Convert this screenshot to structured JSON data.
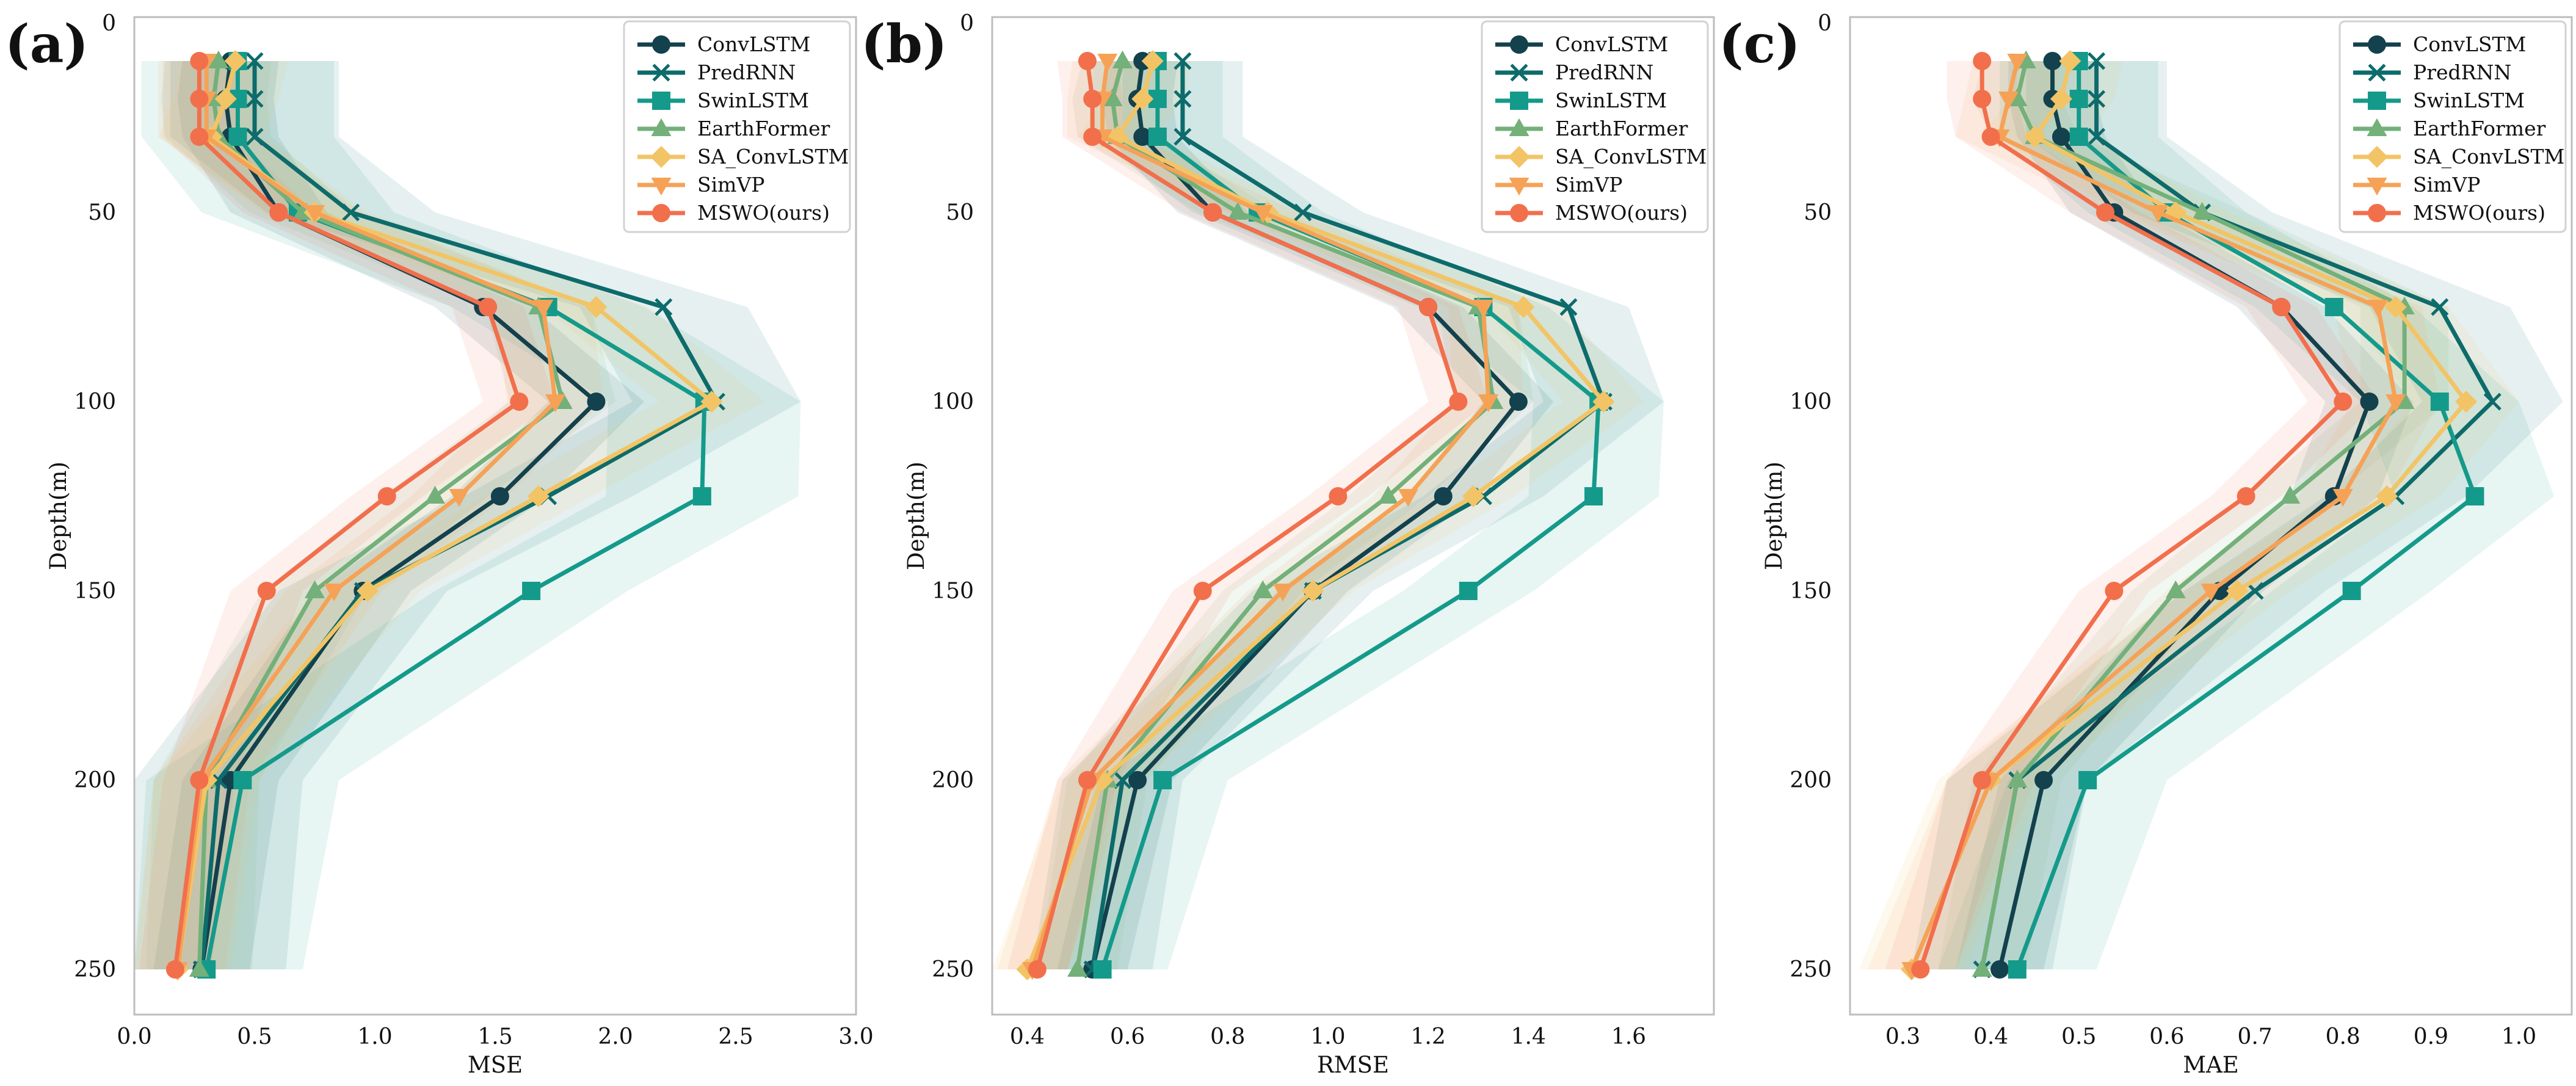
{
  "figure_ylabel": "Depth(m)",
  "legend": [
    "ConvLSTM",
    "PredRNN",
    "SwinLSTM",
    "EarthFormer",
    "SA_ConvLSTM",
    "SimVP",
    "MSWO(ours)"
  ],
  "series_styles": [
    {
      "name": "ConvLSTM",
      "color": "#13414d",
      "marker": "circle"
    },
    {
      "name": "PredRNN",
      "color": "#0d6b6b",
      "marker": "x"
    },
    {
      "name": "SwinLSTM",
      "color": "#149a8a",
      "marker": "square"
    },
    {
      "name": "EarthFormer",
      "color": "#73b07a",
      "marker": "triangle-up"
    },
    {
      "name": "SA_ConvLSTM",
      "color": "#f2c466",
      "marker": "diamond"
    },
    {
      "name": "SimVP",
      "color": "#f5a257",
      "marker": "triangle-down"
    },
    {
      "name": "MSWO(ours)",
      "color": "#f26f4c",
      "marker": "circle"
    }
  ],
  "chart_data": [
    {
      "type": "line",
      "panel": "(a)",
      "xlabel": "MSE",
      "ylabel": "Depth(m)",
      "xlim": [
        0.0,
        3.0
      ],
      "ylim": [
        0,
        265
      ],
      "y_inverted": true,
      "xticks": [
        "0.0",
        "0.5",
        "1.0",
        "1.5",
        "2.0",
        "2.5",
        "3.0"
      ],
      "yticks": [
        "0",
        "50",
        "100",
        "150",
        "200",
        "250"
      ],
      "depths": [
        10,
        20,
        30,
        50,
        75,
        100,
        125,
        150,
        200,
        250
      ],
      "legend_position": "top-right",
      "grid": false,
      "series": [
        {
          "name": "ConvLSTM",
          "values": [
            0.4,
            0.38,
            0.4,
            0.6,
            1.45,
            1.92,
            1.52,
            0.95,
            0.4,
            0.28
          ],
          "band": 0.2
        },
        {
          "name": "PredRNN",
          "values": [
            0.5,
            0.5,
            0.5,
            0.9,
            2.2,
            2.42,
            1.72,
            0.95,
            0.35,
            0.28
          ],
          "band": 0.35
        },
        {
          "name": "SwinLSTM",
          "values": [
            0.43,
            0.43,
            0.43,
            0.68,
            1.72,
            2.37,
            2.36,
            1.65,
            0.45,
            0.3
          ],
          "band": 0.4
        },
        {
          "name": "EarthFormer",
          "values": [
            0.35,
            0.33,
            0.35,
            0.7,
            1.68,
            1.78,
            1.25,
            0.75,
            0.3,
            0.27
          ],
          "band": 0.22
        },
        {
          "name": "SA_ConvLSTM",
          "values": [
            0.42,
            0.38,
            0.32,
            0.75,
            1.92,
            2.4,
            1.68,
            0.97,
            0.3,
            0.18
          ],
          "band": 0.22
        },
        {
          "name": "SimVP",
          "values": [
            0.3,
            0.3,
            0.3,
            0.75,
            1.7,
            1.75,
            1.35,
            0.83,
            0.28,
            0.18
          ],
          "band": 0.2
        },
        {
          "name": "MSWO(ours)",
          "values": [
            0.27,
            0.27,
            0.27,
            0.6,
            1.47,
            1.6,
            1.05,
            0.55,
            0.27,
            0.17
          ],
          "band": 0.15
        }
      ]
    },
    {
      "type": "line",
      "panel": "(b)",
      "xlabel": "RMSE",
      "ylabel": "Depth(m)",
      "xlim": [
        0.33,
        1.77
      ],
      "ylim": [
        0,
        265
      ],
      "y_inverted": true,
      "xticks": [
        "0.4",
        "0.6",
        "0.8",
        "1.0",
        "1.2",
        "1.4",
        "1.6"
      ],
      "yticks": [
        "0",
        "50",
        "100",
        "150",
        "200",
        "250"
      ],
      "depths": [
        10,
        20,
        30,
        50,
        75,
        100,
        125,
        150,
        200,
        250
      ],
      "legend_position": "top-right",
      "grid": false,
      "series": [
        {
          "name": "ConvLSTM",
          "values": [
            0.63,
            0.62,
            0.63,
            0.77,
            1.2,
            1.38,
            1.23,
            0.97,
            0.62,
            0.53
          ],
          "band": 0.07
        },
        {
          "name": "PredRNN",
          "values": [
            0.71,
            0.71,
            0.71,
            0.95,
            1.48,
            1.55,
            1.31,
            0.97,
            0.59,
            0.53
          ],
          "band": 0.12
        },
        {
          "name": "SwinLSTM",
          "values": [
            0.66,
            0.66,
            0.66,
            0.86,
            1.31,
            1.54,
            1.53,
            1.28,
            0.67,
            0.55
          ],
          "band": 0.13
        },
        {
          "name": "EarthFormer",
          "values": [
            0.59,
            0.57,
            0.58,
            0.82,
            1.3,
            1.33,
            1.12,
            0.87,
            0.56,
            0.5
          ],
          "band": 0.08
        },
        {
          "name": "SA_ConvLSTM",
          "values": [
            0.65,
            0.63,
            0.58,
            0.88,
            1.39,
            1.55,
            1.29,
            0.97,
            0.55,
            0.4
          ],
          "band": 0.08
        },
        {
          "name": "SimVP",
          "values": [
            0.56,
            0.55,
            0.55,
            0.87,
            1.31,
            1.32,
            1.16,
            0.91,
            0.53,
            0.41
          ],
          "band": 0.07
        },
        {
          "name": "MSWO(ours)",
          "values": [
            0.52,
            0.53,
            0.53,
            0.77,
            1.2,
            1.26,
            1.02,
            0.75,
            0.52,
            0.42
          ],
          "band": 0.06
        }
      ]
    },
    {
      "type": "line",
      "panel": "(c)",
      "xlabel": "MAE",
      "ylabel": "Depth(m)",
      "xlim": [
        0.24,
        1.06
      ],
      "ylim": [
        0,
        265
      ],
      "y_inverted": true,
      "xticks": [
        "0.3",
        "0.4",
        "0.5",
        "0.6",
        "0.7",
        "0.8",
        "0.9",
        "1.0"
      ],
      "yticks": [
        "0",
        "50",
        "100",
        "150",
        "200",
        "250"
      ],
      "depths": [
        10,
        20,
        30,
        50,
        75,
        100,
        125,
        150,
        200,
        250
      ],
      "legend_position": "top-right",
      "grid": false,
      "series": [
        {
          "name": "ConvLSTM",
          "values": [
            0.47,
            0.47,
            0.48,
            0.54,
            0.73,
            0.83,
            0.79,
            0.66,
            0.46,
            0.41
          ],
          "band": 0.05
        },
        {
          "name": "PredRNN",
          "values": [
            0.52,
            0.52,
            0.52,
            0.64,
            0.91,
            0.97,
            0.86,
            0.7,
            0.43,
            0.39
          ],
          "band": 0.08
        },
        {
          "name": "SwinLSTM",
          "values": [
            0.5,
            0.5,
            0.5,
            0.6,
            0.79,
            0.91,
            0.95,
            0.81,
            0.51,
            0.43
          ],
          "band": 0.09
        },
        {
          "name": "EarthFormer",
          "values": [
            0.44,
            0.43,
            0.45,
            0.64,
            0.87,
            0.87,
            0.74,
            0.61,
            0.43,
            0.39
          ],
          "band": 0.05
        },
        {
          "name": "SA_ConvLSTM",
          "values": [
            0.49,
            0.48,
            0.45,
            0.61,
            0.86,
            0.94,
            0.85,
            0.68,
            0.4,
            0.31
          ],
          "band": 0.06
        },
        {
          "name": "SimVP",
          "values": [
            0.43,
            0.42,
            0.41,
            0.59,
            0.84,
            0.86,
            0.8,
            0.65,
            0.4,
            0.31
          ],
          "band": 0.05
        },
        {
          "name": "MSWO(ours)",
          "values": [
            0.39,
            0.39,
            0.4,
            0.53,
            0.73,
            0.8,
            0.69,
            0.54,
            0.39,
            0.32
          ],
          "band": 0.04
        }
      ]
    }
  ]
}
